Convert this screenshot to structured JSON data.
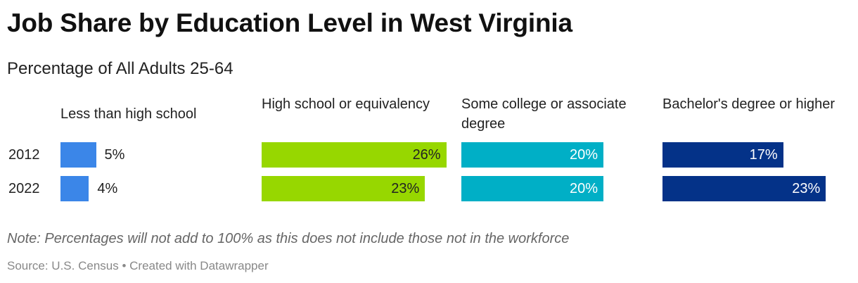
{
  "title": "Job Share by Education Level in West Virginia",
  "subtitle": "Percentage of All Adults 25-64",
  "note": "Note: Percentages will not add to 100% as this does not include those not in the workforce",
  "source": "Source: U.S. Census • Created with Datawrapper",
  "chart_data": {
    "type": "bar",
    "title": "Job Share by Education Level in West Virginia",
    "subtitle": "Percentage of All Adults 25-64",
    "rows": [
      "2012",
      "2022"
    ],
    "xlim": [
      0,
      30
    ],
    "columns": [
      {
        "label": "Less than high school",
        "color": "#3b86e8",
        "values": [
          5,
          4
        ],
        "labels": [
          "5%",
          "4%"
        ]
      },
      {
        "label": "High school or equivalency",
        "color": "#97d700",
        "values": [
          26,
          23
        ],
        "labels": [
          "26%",
          "23%"
        ]
      },
      {
        "label": "Some college or associate degree",
        "color": "#00afc6",
        "values": [
          20,
          20
        ],
        "labels": [
          "20%",
          "20%"
        ]
      },
      {
        "label": "Bachelor's degree or higher",
        "color": "#043288",
        "values": [
          17,
          23
        ],
        "labels": [
          "17%",
          "23%"
        ]
      }
    ]
  }
}
